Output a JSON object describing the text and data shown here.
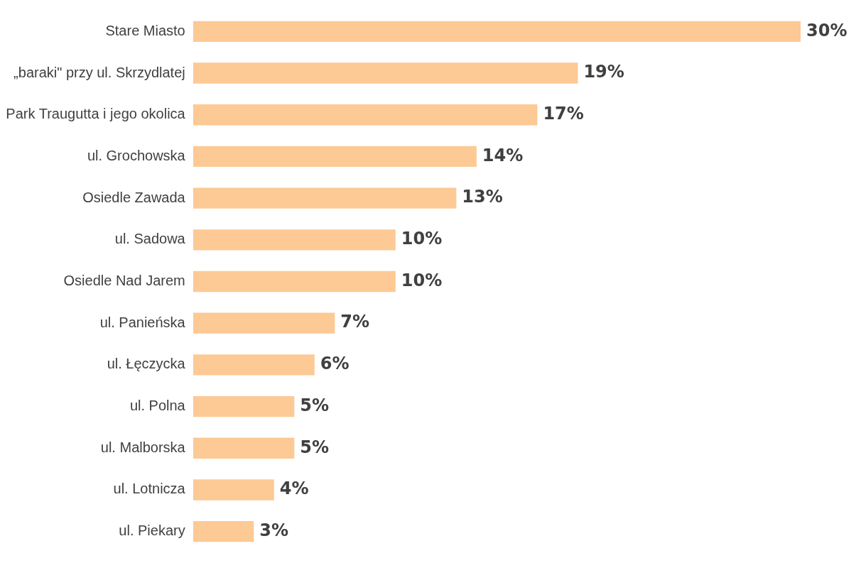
{
  "chart_data": {
    "type": "bar",
    "orientation": "horizontal",
    "categories": [
      "Stare Miasto",
      "„baraki\" przy ul. Skrzydlatej",
      "Park Traugutta i jego okolica",
      "ul. Grochowska",
      "Osiedle Zawada",
      "ul. Sadowa",
      "Osiedle Nad Jarem",
      "ul. Panieńska",
      "ul. Łęczycka",
      "ul. Polna",
      "ul. Malborska",
      "ul. Lotnicza",
      "ul. Piekary"
    ],
    "values": [
      30,
      19,
      17,
      14,
      13,
      10,
      10,
      7,
      6,
      5,
      5,
      4,
      3
    ],
    "value_labels": [
      "30%",
      "19%",
      "17%",
      "14%",
      "13%",
      "10%",
      "10%",
      "7%",
      "6%",
      "5%",
      "5%",
      "4%",
      "3%"
    ],
    "color": "#fdc994",
    "legend": false
  }
}
